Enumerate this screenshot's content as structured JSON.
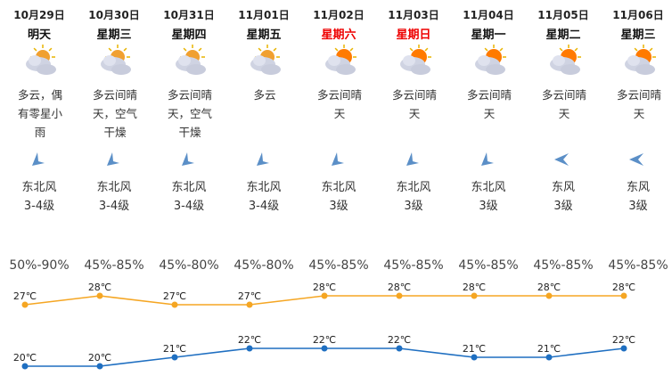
{
  "days": [
    {
      "date": "10月29日",
      "weekday": "明天",
      "weekend": false,
      "desc": "多云，偶有零星小雨",
      "wind_dir": "东北风",
      "wind_level": "3-4级",
      "humidity": "50%-90%",
      "high": 27,
      "low": 20,
      "high_label": "27℃",
      "low_label": "20℃",
      "icon": "partly-cloudy-icon"
    },
    {
      "date": "10月30日",
      "weekday": "星期三",
      "weekend": false,
      "desc": "多云间晴天，空气干燥",
      "wind_dir": "东北风",
      "wind_level": "3-4级",
      "humidity": "45%-85%",
      "high": 28,
      "low": 20,
      "high_label": "28℃",
      "low_label": "20℃",
      "icon": "partly-cloudy-icon"
    },
    {
      "date": "10月31日",
      "weekday": "星期四",
      "weekend": false,
      "desc": "多云间晴天，空气干燥",
      "wind_dir": "东北风",
      "wind_level": "3-4级",
      "humidity": "45%-80%",
      "high": 27,
      "low": 21,
      "high_label": "27℃",
      "low_label": "21℃",
      "icon": "partly-cloudy-icon"
    },
    {
      "date": "11月01日",
      "weekday": "星期五",
      "weekend": false,
      "desc": "多云",
      "wind_dir": "东北风",
      "wind_level": "3-4级",
      "humidity": "45%-80%",
      "high": 27,
      "low": 22,
      "high_label": "27℃",
      "low_label": "22℃",
      "icon": "partly-cloudy-icon"
    },
    {
      "date": "11月02日",
      "weekday": "星期六",
      "weekend": true,
      "desc": "多云间晴天",
      "wind_dir": "东北风",
      "wind_level": "3级",
      "humidity": "45%-85%",
      "high": 28,
      "low": 22,
      "high_label": "28℃",
      "low_label": "22℃",
      "icon": "sunny-cloudy-icon"
    },
    {
      "date": "11月03日",
      "weekday": "星期日",
      "weekend": true,
      "desc": "多云间晴天",
      "wind_dir": "东北风",
      "wind_level": "3级",
      "humidity": "45%-85%",
      "high": 28,
      "low": 22,
      "high_label": "28℃",
      "low_label": "22℃",
      "icon": "sunny-cloudy-icon"
    },
    {
      "date": "11月04日",
      "weekday": "星期一",
      "weekend": false,
      "desc": "多云间晴天",
      "wind_dir": "东北风",
      "wind_level": "3级",
      "humidity": "45%-85%",
      "high": 28,
      "low": 21,
      "high_label": "28℃",
      "low_label": "21℃",
      "icon": "sunny-cloudy-icon"
    },
    {
      "date": "11月05日",
      "weekday": "星期二",
      "weekend": false,
      "desc": "多云间晴天",
      "wind_dir": "东风",
      "wind_level": "3级",
      "humidity": "45%-85%",
      "high": 28,
      "low": 21,
      "high_label": "28℃",
      "low_label": "21℃",
      "icon": "sunny-cloudy-icon"
    },
    {
      "date": "11月06日",
      "weekday": "星期三",
      "weekend": false,
      "desc": "多云间晴天",
      "wind_dir": "东风",
      "wind_level": "3级",
      "humidity": "45%-85%",
      "high": 28,
      "low": 22,
      "high_label": "28℃",
      "low_label": "22℃",
      "icon": "sunny-cloudy-icon"
    }
  ],
  "colors": {
    "high_line": "#f5a623",
    "low_line": "#1f6fc1",
    "weekend": "#e00000",
    "arrow": "#5b8fc7"
  }
}
